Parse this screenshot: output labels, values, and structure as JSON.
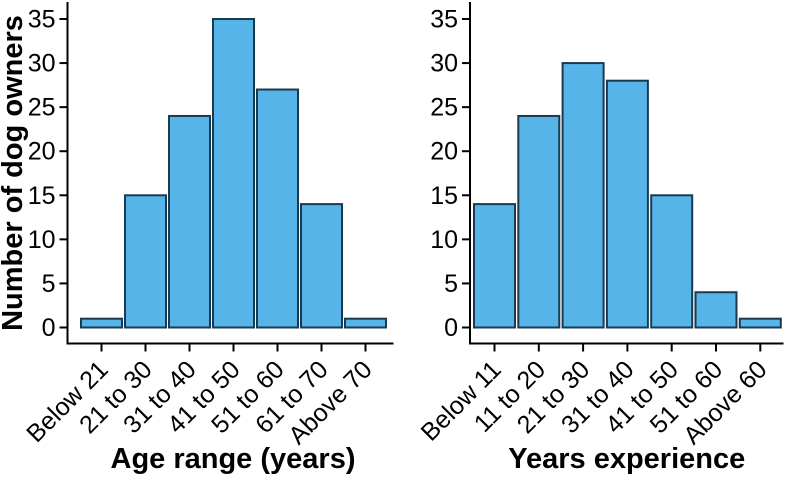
{
  "figure": {
    "background": "#ffffff",
    "shared_ylabel": "Number of dog owners"
  },
  "colors": {
    "bar_fill": "#56B4E9",
    "bar_stroke": "#1B3A4E",
    "axis_line": "#000000",
    "text": "#000000"
  },
  "chart_data": [
    {
      "type": "bar",
      "title": "",
      "xlabel": "Age range (years)",
      "ylabel": "Number of dog owners",
      "categories": [
        "Below 21",
        "21 to 30",
        "31 to 40",
        "41 to 50",
        "51 to 60",
        "61 to 70",
        "Above 70"
      ],
      "values": [
        1,
        15,
        24,
        35,
        27,
        14,
        1
      ],
      "ylim": [
        0,
        35
      ],
      "yticks": [
        0,
        5,
        10,
        15,
        20,
        25,
        30,
        35
      ],
      "grid": false,
      "legend": "none",
      "x_tick_rotation_deg": 45
    },
    {
      "type": "bar",
      "title": "",
      "xlabel": "Years experience",
      "ylabel": "",
      "categories": [
        "Below 11",
        "11 to 20",
        "21 to 30",
        "31 to 40",
        "41 to 50",
        "51 to 60",
        "Above 60"
      ],
      "values": [
        14,
        24,
        30,
        28,
        15,
        4,
        1
      ],
      "ylim": [
        0,
        35
      ],
      "yticks": [
        0,
        5,
        10,
        15,
        20,
        25,
        30,
        35
      ],
      "grid": false,
      "legend": "none",
      "x_tick_rotation_deg": 45
    }
  ]
}
